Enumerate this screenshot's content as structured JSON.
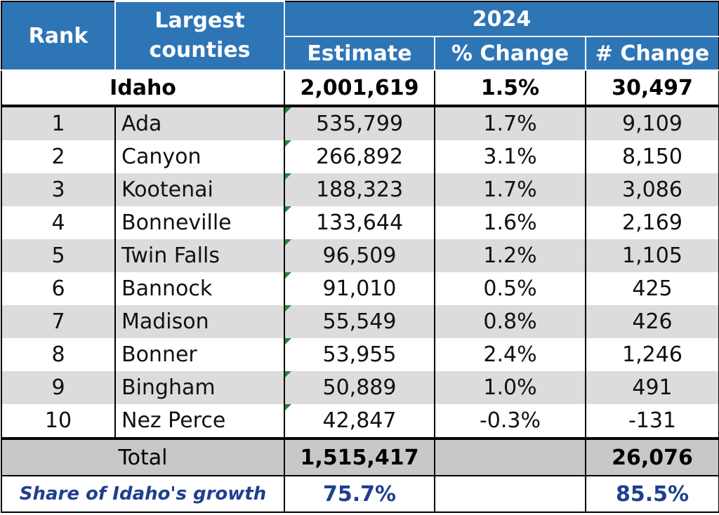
{
  "header": {
    "rank": "Rank",
    "largest_counties_line1": "Largest",
    "largest_counties_line2": "counties",
    "year": "2024",
    "estimate": "Estimate",
    "pct_change": "% Change",
    "num_change": "# Change"
  },
  "state": {
    "name": "Idaho",
    "estimate": "2,001,619",
    "pct_change": "1.5%",
    "num_change": "30,497"
  },
  "counties": [
    {
      "rank": "1",
      "name": "Ada",
      "estimate": "535,799",
      "pct_change": "1.7%",
      "num_change": "9,109"
    },
    {
      "rank": "2",
      "name": "Canyon",
      "estimate": "266,892",
      "pct_change": "3.1%",
      "num_change": "8,150"
    },
    {
      "rank": "3",
      "name": "Kootenai",
      "estimate": "188,323",
      "pct_change": "1.7%",
      "num_change": "3,086"
    },
    {
      "rank": "4",
      "name": "Bonneville",
      "estimate": "133,644",
      "pct_change": "1.6%",
      "num_change": "2,169"
    },
    {
      "rank": "5",
      "name": "Twin Falls",
      "estimate": "96,509",
      "pct_change": "1.2%",
      "num_change": "1,105"
    },
    {
      "rank": "6",
      "name": "Bannock",
      "estimate": "91,010",
      "pct_change": "0.5%",
      "num_change": "425"
    },
    {
      "rank": "7",
      "name": "Madison",
      "estimate": "55,549",
      "pct_change": "0.8%",
      "num_change": "426"
    },
    {
      "rank": "8",
      "name": "Bonner",
      "estimate": "53,955",
      "pct_change": "2.4%",
      "num_change": "1,246"
    },
    {
      "rank": "9",
      "name": "Bingham",
      "estimate": "50,889",
      "pct_change": "1.0%",
      "num_change": "491"
    },
    {
      "rank": "10",
      "name": "Nez Perce",
      "estimate": "42,847",
      "pct_change": "-0.3%",
      "num_change": "-131"
    }
  ],
  "total": {
    "label": "Total",
    "estimate": "1,515,417",
    "pct_change": "",
    "num_change": "26,076"
  },
  "share": {
    "label": "Share of Idaho's growth",
    "estimate": "75.7%",
    "pct_change": "",
    "num_change": "85.5%"
  },
  "colors": {
    "header_bg": "#2e75b6",
    "row_shade": "#dcdcdc",
    "total_bg": "#c8c8c8",
    "share_text": "#1f3f8f",
    "error_marker": "#1e8a3a"
  }
}
